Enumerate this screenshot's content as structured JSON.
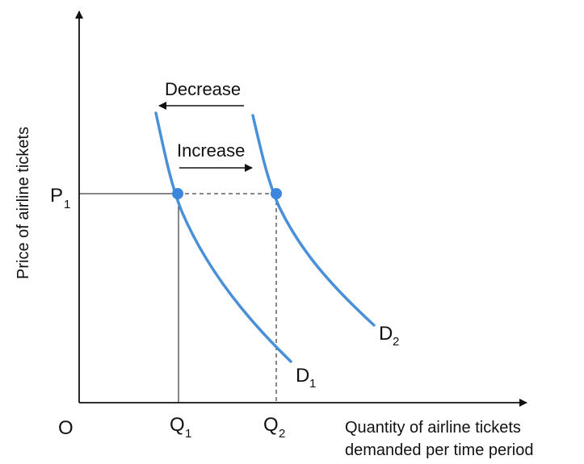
{
  "axes": {
    "y_title": "Price of airline tickets",
    "x_title_line1": "Quantity of airline tickets",
    "x_title_line2": "demanded per time period",
    "origin": "O"
  },
  "labels": {
    "p1_main": "P",
    "p1_sub": "1",
    "q1_main": "Q",
    "q1_sub": "1",
    "q2_main": "Q",
    "q2_sub": "2",
    "d1_main": "D",
    "d1_sub": "1",
    "d2_main": "D",
    "d2_sub": "2"
  },
  "annotations": {
    "decrease": "Decrease",
    "increase": "Increase"
  },
  "colors": {
    "curve": "#4a90d9",
    "point": "#3d86dd",
    "axis": "#111111"
  }
}
